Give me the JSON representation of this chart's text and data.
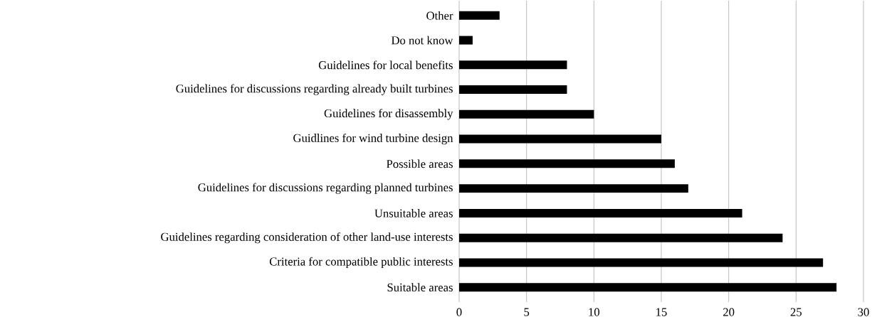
{
  "chart_data": {
    "type": "bar",
    "orientation": "horizontal",
    "categories": [
      "Other",
      "Do not know",
      "Guidelines for local benefits",
      "Guidelines for discussions regarding already built turbines",
      "Guidelines for disassembly",
      "Guidlines for wind turbine design",
      "Possible areas",
      "Guidelines for discussions regarding planned turbines",
      "Unsuitable areas",
      "Guidelines regarding consideration of other land-use interests",
      "Criteria for compatible public interests",
      "Suitable areas"
    ],
    "values": [
      3,
      1,
      8,
      8,
      10,
      15,
      16,
      17,
      21,
      24,
      27,
      28
    ],
    "color": "#000000",
    "xlim": [
      0,
      30
    ],
    "xticks": [
      0,
      5,
      10,
      15,
      20,
      25,
      30
    ],
    "grid": "x"
  }
}
